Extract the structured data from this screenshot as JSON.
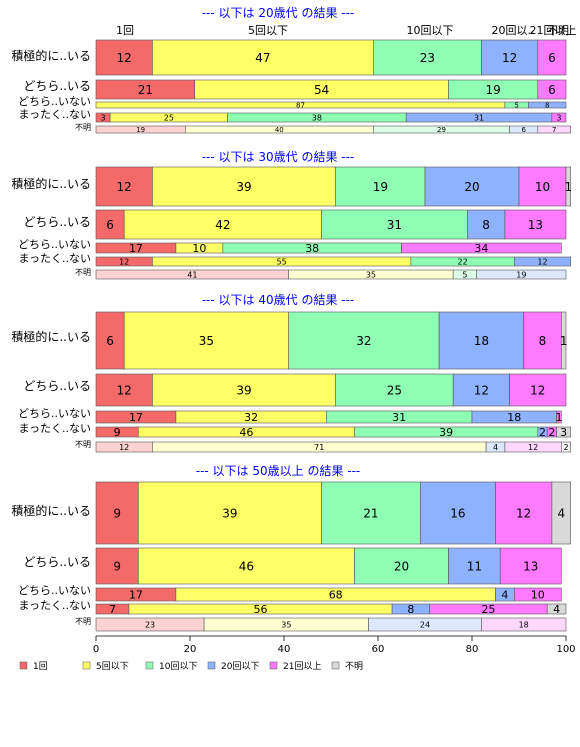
{
  "chart_data": {
    "type": "bar",
    "orientation": "horizontal-stacked-100",
    "xlim": [
      0,
      100
    ],
    "x_ticks": [
      "0",
      "20",
      "40",
      "60",
      "80",
      "100"
    ],
    "categories": [
      "1回",
      "5回以下",
      "10回以下",
      "20回以下",
      "21回以上",
      "不明"
    ],
    "top_category_labels": [
      "1回",
      "5回以下",
      "10回以下",
      "20回以..",
      "21回以上",
      "不明"
    ],
    "colors": [
      "#f46a6a",
      "#ffff66",
      "#8fffb4",
      "#8fb2ff",
      "#ff7aff",
      "#d9d9d9"
    ],
    "legend": {
      "position": "bottom",
      "items": [
        "1回",
        "5回以下",
        "10回以下",
        "20回以下",
        "21回以上",
        "不明"
      ]
    },
    "panels": [
      {
        "title": "--- 以下は 20歳代 の結果 ---",
        "rows": [
          {
            "label": "積極的に..いる",
            "size": "large",
            "values": [
              12,
              47,
              23,
              12,
              6,
              0
            ]
          },
          {
            "label": "どちら..いる",
            "size": "medium",
            "values": [
              21,
              54,
              19,
              0,
              6,
              0
            ]
          },
          {
            "label": "どちら..いない",
            "size": "small",
            "values": [
              0,
              87,
              5,
              8,
              0,
              0
            ]
          },
          {
            "label": "まったく..ない",
            "size": "small",
            "values": [
              3,
              25,
              38,
              31,
              3,
              0
            ]
          },
          {
            "label": "不明",
            "size": "small",
            "faded": true,
            "values": [
              19,
              40,
              29,
              6,
              7,
              0
            ]
          }
        ]
      },
      {
        "title": "--- 以下は 30歳代 の結果 ---",
        "rows": [
          {
            "label": "積極的に..いる",
            "size": "large",
            "values": [
              12,
              39,
              19,
              20,
              10,
              1
            ]
          },
          {
            "label": "どちら..いる",
            "size": "medium",
            "values": [
              6,
              42,
              31,
              8,
              13,
              0
            ]
          },
          {
            "label": "どちら..いない",
            "size": "small",
            "values": [
              17,
              10,
              38,
              0,
              34,
              0
            ]
          },
          {
            "label": "まったく..ない",
            "size": "small",
            "values": [
              12,
              55,
              22,
              12,
              0,
              0
            ]
          },
          {
            "label": "不明",
            "size": "small",
            "faded": true,
            "values": [
              41,
              35,
              5,
              19,
              0,
              0
            ]
          }
        ]
      },
      {
        "title": "--- 以下は 40歳代 の結果 ---",
        "rows": [
          {
            "label": "積極的に..いる",
            "size": "large",
            "values": [
              6,
              35,
              32,
              18,
              8,
              1
            ]
          },
          {
            "label": "どちら..いる",
            "size": "medium",
            "values": [
              12,
              39,
              25,
              12,
              12,
              0
            ]
          },
          {
            "label": "どちら..いない",
            "size": "small",
            "values": [
              17,
              32,
              31,
              18,
              1,
              0
            ]
          },
          {
            "label": "まったく..ない",
            "size": "small",
            "values": [
              9,
              46,
              39,
              2,
              2,
              3
            ]
          },
          {
            "label": "不明",
            "size": "small",
            "faded": true,
            "values": [
              12,
              71,
              0,
              4,
              12,
              2
            ]
          }
        ]
      },
      {
        "title": "--- 以下は 50歳以上 の結果 ---",
        "rows": [
          {
            "label": "積極的に..いる",
            "size": "large",
            "values": [
              9,
              39,
              21,
              16,
              12,
              4
            ]
          },
          {
            "label": "どちら..いる",
            "size": "medium",
            "values": [
              9,
              46,
              20,
              11,
              13,
              0
            ]
          },
          {
            "label": "どちら..いない",
            "size": "small",
            "values": [
              17,
              68,
              0,
              4,
              10,
              0
            ]
          },
          {
            "label": "まったく..ない",
            "size": "small",
            "values": [
              7,
              56,
              0,
              8,
              25,
              4
            ]
          },
          {
            "label": "不明",
            "size": "small",
            "faded": true,
            "values": [
              23,
              35,
              0,
              24,
              18,
              0
            ]
          }
        ]
      }
    ]
  }
}
